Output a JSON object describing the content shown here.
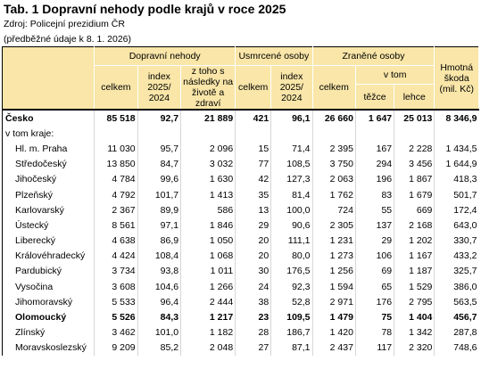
{
  "title": "Tab. 1 Dopravní nehody podle krajů v roce 2025",
  "source": "Zdroj: Policejní prezidium ČR",
  "note": "(předběžné údaje k 8. 1. 2026)",
  "headers": {
    "nehody": "Dopravní nehody",
    "usmrcene": "Usmrcené osoby",
    "zranene": "Zraněné osoby",
    "skoda": "Hmotná škoda (mil. Kč)",
    "celkem": "celkem",
    "index": "index 2025/ 2024",
    "ztoho": "z toho s následky na životě a zdraví",
    "vtom": "v tom",
    "tezce": "těžce",
    "lehce": "lehce"
  },
  "total": {
    "name": "Česko",
    "v": [
      "85 518",
      "92,7",
      "21 889",
      "421",
      "96,1",
      "26 660",
      "1 647",
      "25 013",
      "8 346,9"
    ]
  },
  "section_label": "v tom kraje:",
  "rows": [
    {
      "name": "Hl. m. Praha",
      "v": [
        "11 030",
        "95,7",
        "2 096",
        "15",
        "71,4",
        "2 395",
        "167",
        "2 228",
        "1 434,5"
      ]
    },
    {
      "name": "Středočeský",
      "v": [
        "13 850",
        "84,7",
        "3 032",
        "77",
        "108,5",
        "3 750",
        "294",
        "3 456",
        "1 644,9"
      ]
    },
    {
      "name": "Jihočeský",
      "v": [
        "4 784",
        "99,6",
        "1 630",
        "42",
        "127,3",
        "2 063",
        "196",
        "1 867",
        "418,3"
      ]
    },
    {
      "name": "Plzeňský",
      "v": [
        "4 792",
        "101,7",
        "1 413",
        "35",
        "81,4",
        "1 762",
        "83",
        "1 679",
        "501,7"
      ]
    },
    {
      "name": "Karlovarský",
      "v": [
        "2 367",
        "89,9",
        "586",
        "13",
        "100,0",
        "724",
        "55",
        "669",
        "172,4"
      ]
    },
    {
      "name": "Ústecký",
      "v": [
        "8 561",
        "97,1",
        "1 846",
        "29",
        "90,6",
        "2 305",
        "137",
        "2 168",
        "643,0"
      ]
    },
    {
      "name": "Liberecký",
      "v": [
        "4 638",
        "86,9",
        "1 050",
        "20",
        "111,1",
        "1 231",
        "29",
        "1 202",
        "330,7"
      ]
    },
    {
      "name": "Královéhradecký",
      "v": [
        "4 424",
        "108,4",
        "1 068",
        "20",
        "80,0",
        "1 273",
        "106",
        "1 167",
        "433,2"
      ]
    },
    {
      "name": "Pardubický",
      "v": [
        "3 734",
        "93,8",
        "1 011",
        "30",
        "176,5",
        "1 256",
        "69",
        "1 187",
        "325,7"
      ]
    },
    {
      "name": "Vysočina",
      "v": [
        "3 608",
        "104,6",
        "1 266",
        "24",
        "92,3",
        "1 594",
        "65",
        "1 529",
        "386,0"
      ]
    },
    {
      "name": "Jihomoravský",
      "v": [
        "5 533",
        "96,4",
        "2 444",
        "38",
        "52,8",
        "2 971",
        "176",
        "2 795",
        "563,5"
      ]
    },
    {
      "name": "Olomoucký",
      "v": [
        "5 526",
        "84,3",
        "1 217",
        "23",
        "109,5",
        "1 479",
        "75",
        "1 404",
        "456,7"
      ],
      "highlight": true
    },
    {
      "name": "Zlínský",
      "v": [
        "3 462",
        "101,0",
        "1 182",
        "28",
        "186,7",
        "1 420",
        "78",
        "1 342",
        "287,8"
      ]
    },
    {
      "name": "Moravskoslezský",
      "v": [
        "9 209",
        "85,2",
        "2 048",
        "27",
        "87,1",
        "2 437",
        "117",
        "2 320",
        "748,6"
      ]
    }
  ]
}
